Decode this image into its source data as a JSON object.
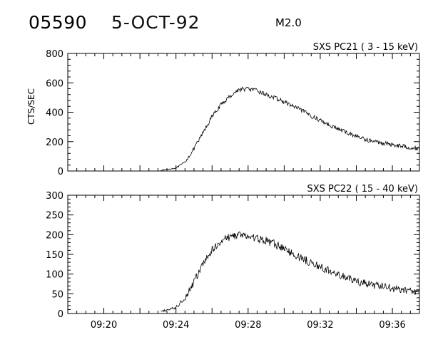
{
  "header": {
    "event_id": "05590",
    "date": "5-OCT-92",
    "flare_class": "M2.0"
  },
  "chart_data": [
    {
      "type": "line",
      "title": "SXS PC21  (  3 - 15 keV)",
      "xlabel": "",
      "ylabel": "CTS/SEC",
      "xlim": [
        "09:18:00",
        "09:37:30"
      ],
      "ylim": [
        0,
        800
      ],
      "yticks": [
        0,
        200,
        400,
        600,
        800
      ],
      "xticks": [
        "09:20",
        "09:24",
        "09:28",
        "09:32",
        "09:36"
      ],
      "show_xtick_labels": false,
      "grid": false,
      "noise": 15,
      "series": [
        {
          "x": [
            "09:23:10",
            "09:24:00",
            "09:24:30",
            "09:25:00",
            "09:25:30",
            "09:26:00",
            "09:26:30",
            "09:27:00",
            "09:27:30",
            "09:28:00",
            "09:28:30",
            "09:29:00",
            "09:29:30",
            "09:30:00",
            "09:30:30",
            "09:31:00",
            "09:31:30",
            "09:32:00",
            "09:32:30",
            "09:33:00",
            "09:33:30",
            "09:34:00",
            "09:34:30",
            "09:35:00",
            "09:35:30",
            "09:36:00",
            "09:36:30",
            "09:37:00",
            "09:37:30"
          ],
          "values": [
            5,
            20,
            60,
            150,
            260,
            370,
            450,
            510,
            555,
            560,
            545,
            520,
            495,
            470,
            440,
            410,
            375,
            345,
            315,
            285,
            260,
            238,
            215,
            200,
            190,
            180,
            170,
            160,
            150
          ]
        }
      ]
    },
    {
      "type": "line",
      "title": "SXS PC22  ( 15 - 40 keV)",
      "xlabel": "",
      "ylabel": "",
      "xlim": [
        "09:18:00",
        "09:37:30"
      ],
      "ylim": [
        0,
        300
      ],
      "yticks": [
        0,
        50,
        100,
        150,
        200,
        250,
        300
      ],
      "xticks": [
        "09:20",
        "09:24",
        "09:28",
        "09:32",
        "09:36"
      ],
      "show_xtick_labels": true,
      "grid": false,
      "noise": 10,
      "series": [
        {
          "x": [
            "09:23:10",
            "09:24:00",
            "09:24:30",
            "09:25:00",
            "09:25:30",
            "09:26:00",
            "09:26:30",
            "09:27:00",
            "09:27:30",
            "09:28:00",
            "09:28:30",
            "09:29:00",
            "09:29:30",
            "09:30:00",
            "09:30:30",
            "09:31:00",
            "09:31:30",
            "09:32:00",
            "09:32:30",
            "09:33:00",
            "09:33:30",
            "09:34:00",
            "09:34:30",
            "09:35:00",
            "09:35:30",
            "09:36:00",
            "09:36:30",
            "09:37:00",
            "09:37:30"
          ],
          "values": [
            5,
            15,
            40,
            80,
            125,
            160,
            185,
            195,
            200,
            195,
            190,
            185,
            175,
            165,
            150,
            140,
            128,
            118,
            108,
            98,
            90,
            82,
            76,
            72,
            68,
            64,
            60,
            57,
            55
          ]
        }
      ]
    }
  ]
}
